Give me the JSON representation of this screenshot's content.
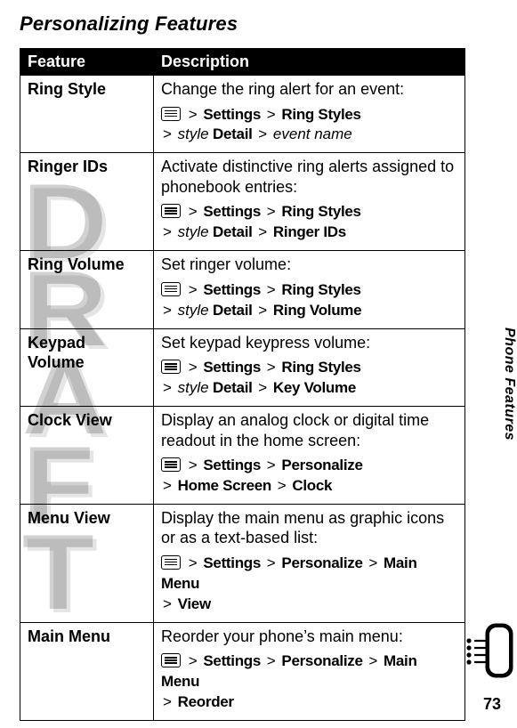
{
  "page_title": "Personalizing Features",
  "side_tab": "Phone Features",
  "page_number": "73",
  "draft_watermark": "DRAFT",
  "colors": {
    "header_bg": "#000000",
    "header_fg": "#ffffff",
    "border": "#000000",
    "background": "#ffffff",
    "watermark": "rgba(0,0,0,0.18)"
  },
  "table": {
    "columns": [
      "Feature",
      "Description"
    ],
    "rows": [
      {
        "feature": "Ring Style",
        "description": "Change the ring alert for an event:",
        "path": [
          {
            "icon": true
          },
          {
            "sep": ">"
          },
          {
            "text": "Settings",
            "style": "bold"
          },
          {
            "sep": ">"
          },
          {
            "text": "Ring Styles",
            "style": "bold"
          },
          {
            "break": true
          },
          {
            "sep": ">"
          },
          {
            "text": "style",
            "style": "italic"
          },
          {
            "text": " Detail",
            "style": "bold"
          },
          {
            "sep": ">"
          },
          {
            "text": "event name",
            "style": "italic"
          }
        ]
      },
      {
        "feature": "Ringer IDs",
        "description": "Activate distinctive ring alerts assigned to phonebook entries:",
        "path": [
          {
            "icon": true
          },
          {
            "sep": ">"
          },
          {
            "text": "Settings",
            "style": "bold"
          },
          {
            "sep": ">"
          },
          {
            "text": "Ring Styles",
            "style": "bold"
          },
          {
            "break": true
          },
          {
            "sep": ">"
          },
          {
            "text": "style",
            "style": "italic"
          },
          {
            "text": " Detail",
            "style": "bold"
          },
          {
            "sep": ">"
          },
          {
            "text": "Ringer IDs",
            "style": "bold"
          }
        ]
      },
      {
        "feature": "Ring Volume",
        "description": "Set ringer volume:",
        "path": [
          {
            "icon": true
          },
          {
            "sep": ">"
          },
          {
            "text": "Settings",
            "style": "bold"
          },
          {
            "sep": ">"
          },
          {
            "text": "Ring Styles",
            "style": "bold"
          },
          {
            "break": true
          },
          {
            "sep": ">"
          },
          {
            "text": "style",
            "style": "italic"
          },
          {
            "text": " Detail",
            "style": "bold"
          },
          {
            "sep": ">"
          },
          {
            "text": "Ring Volume",
            "style": "bold"
          }
        ]
      },
      {
        "feature": "Keypad Volume",
        "description": "Set keypad keypress volume:",
        "path": [
          {
            "icon": true
          },
          {
            "sep": ">"
          },
          {
            "text": "Settings",
            "style": "bold"
          },
          {
            "sep": ">"
          },
          {
            "text": "Ring Styles",
            "style": "bold"
          },
          {
            "break": true
          },
          {
            "sep": ">"
          },
          {
            "text": "style",
            "style": "italic"
          },
          {
            "text": " Detail",
            "style": "bold"
          },
          {
            "sep": ">"
          },
          {
            "text": "Key Volume",
            "style": "bold"
          }
        ]
      },
      {
        "feature": "Clock View",
        "description": "Display an analog clock or digital time readout in the home screen:",
        "path": [
          {
            "icon": true
          },
          {
            "sep": ">"
          },
          {
            "text": "Settings",
            "style": "bold"
          },
          {
            "sep": ">"
          },
          {
            "text": "Personalize",
            "style": "bold"
          },
          {
            "break": true
          },
          {
            "sep": ">"
          },
          {
            "text": "Home Screen",
            "style": "bold"
          },
          {
            "sep": ">"
          },
          {
            "text": "Clock",
            "style": "bold"
          }
        ]
      },
      {
        "feature": "Menu View",
        "description": "Display the main menu as graphic icons or as a text-based list:",
        "path": [
          {
            "icon": true
          },
          {
            "sep": ">"
          },
          {
            "text": "Settings",
            "style": "bold"
          },
          {
            "sep": ">"
          },
          {
            "text": "Personalize",
            "style": "bold"
          },
          {
            "sep": ">"
          },
          {
            "text": "Main Menu",
            "style": "bold"
          },
          {
            "break": true
          },
          {
            "sep": ">"
          },
          {
            "text": "View",
            "style": "bold"
          }
        ]
      },
      {
        "feature": "Main Menu",
        "description": "Reorder your phone’s main menu:",
        "path": [
          {
            "icon": true
          },
          {
            "sep": ">"
          },
          {
            "text": "Settings",
            "style": "bold"
          },
          {
            "sep": ">"
          },
          {
            "text": "Personalize",
            "style": "bold"
          },
          {
            "sep": ">"
          },
          {
            "text": "Main Menu",
            "style": "bold"
          },
          {
            "break": true
          },
          {
            "sep": ">"
          },
          {
            "text": "Reorder",
            "style": "bold"
          }
        ]
      }
    ]
  }
}
